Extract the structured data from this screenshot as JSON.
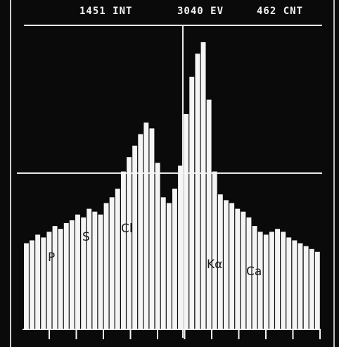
{
  "header": {
    "integral": "1451 INT",
    "energy": "3040 EV",
    "count": "462 CNT"
  },
  "chart_data": {
    "type": "bar",
    "title": "",
    "xlabel": "",
    "ylabel": "",
    "xlim": [
      0,
      51
    ],
    "ylim": [
      0,
      100
    ],
    "grid": true,
    "values": [
      30,
      31,
      33,
      32,
      34,
      36,
      35,
      37,
      38,
      40,
      39,
      42,
      41,
      40,
      44,
      46,
      49,
      55,
      60,
      64,
      68,
      72,
      70,
      58,
      46,
      44,
      49,
      57,
      75,
      88,
      96,
      100,
      80,
      55,
      47,
      45,
      44,
      42,
      41,
      39,
      36,
      34,
      33,
      34,
      35,
      34,
      32,
      31,
      30,
      29,
      28,
      27
    ],
    "annotations": [
      {
        "label": "P",
        "element": "phosphorus"
      },
      {
        "label": "S",
        "element": "sulfur"
      },
      {
        "label": "Cl",
        "element": "chlorine"
      },
      {
        "label": "Kα",
        "element": "potassium"
      },
      {
        "label": "Ca",
        "element": "calcium"
      }
    ],
    "colors": {
      "background": "#0a0a0a",
      "bars": "#f5f5f5",
      "grid": "#e8e8e8",
      "text": "#f2f2f2"
    }
  }
}
